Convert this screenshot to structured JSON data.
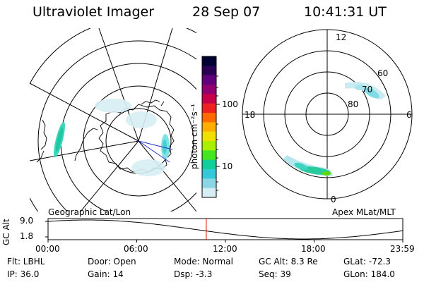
{
  "header": {
    "title": "Ultraviolet Imager",
    "date": "28 Sep 07",
    "time": "10:41:31 UT"
  },
  "left_panel": {
    "caption": "Geographic Lat/Lon"
  },
  "right_panel": {
    "caption": "Apex MLat/MLT",
    "mlt_labels": {
      "top": "12",
      "left": "18",
      "right": "6",
      "bottom": "0"
    },
    "lat_labels": [
      "60",
      "70",
      "80"
    ]
  },
  "colorbar": {
    "unit_label": "photon cm⁻²s⁻¹",
    "ticks": [
      "100",
      "10"
    ],
    "colors": [
      "#000033",
      "#2a0055",
      "#60007a",
      "#900070",
      "#c8004a",
      "#ef2020",
      "#ff6a00",
      "#ffae00",
      "#f0e000",
      "#a8ef00",
      "#44e620",
      "#10d09a",
      "#34c8d8",
      "#8ad6e4",
      "#d4eef4"
    ]
  },
  "timeline": {
    "ylabel": "GC Alt",
    "y_ticks": [
      "9.0",
      "1.8"
    ],
    "x_ticks": [
      "00:00",
      "06:00",
      "12:00",
      "18:00",
      "23:59"
    ],
    "current_time_fraction": 0.446,
    "marker_color": "#e00000"
  },
  "footer": {
    "filt": "Flt:  LBHL",
    "ip": "IP:  36.0",
    "door": "Door:  Open",
    "gain": "Gain:  14",
    "mode": "Mode:  Normal",
    "dsp": "Dsp:    -3.3",
    "gcalt": "GC Alt:  8.3 Re",
    "seq": "Seq:  39",
    "glat": "GLat:  -72.3",
    "glon": "GLon:  184.0"
  }
}
